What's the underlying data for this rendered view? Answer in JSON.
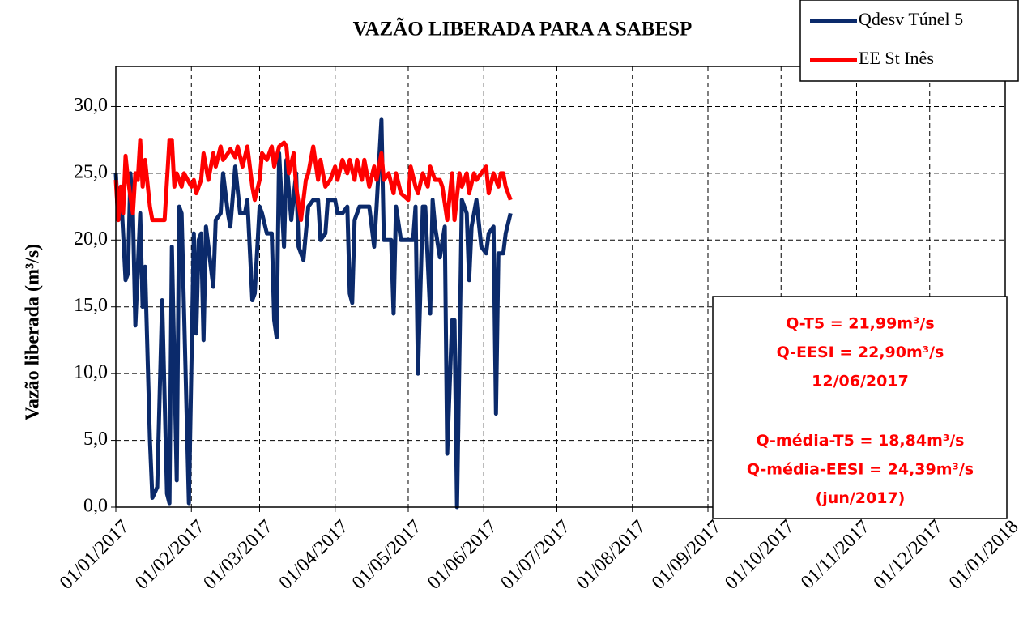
{
  "chart_data": {
    "type": "line",
    "title": "VAZÃO  LIBERADA PARA A SABESP",
    "y_label": "Vazão liberada  (m³/s)",
    "xlim": [
      "01/01/2017",
      "01/01/2018"
    ],
    "xticks": [
      "01/01/2017",
      "01/02/2017",
      "01/03/2017",
      "01/04/2017",
      "01/05/2017",
      "01/06/2017",
      "01/07/2017",
      "01/08/2017",
      "01/09/2017",
      "01/10/2017",
      "01/11/2017",
      "01/12/2017",
      "01/01/2018"
    ],
    "ylim": [
      0,
      33
    ],
    "yticks": [
      {
        "value": 0,
        "label": "0,0"
      },
      {
        "value": 5,
        "label": "5,0"
      },
      {
        "value": 10,
        "label": "10,0"
      },
      {
        "value": 15,
        "label": "15,0"
      },
      {
        "value": 20,
        "label": "20,0"
      },
      {
        "value": 25,
        "label": "25,0"
      },
      {
        "value": 30,
        "label": "30,0"
      }
    ],
    "grid": true,
    "legend": "top-right",
    "series": [
      {
        "name": "Qdesv Túnel 5",
        "color": "#0b2a6b",
        "x": [
          "01/01/2017",
          "02/01/2017",
          "03/01/2017",
          "05/01/2017",
          "06/01/2017",
          "07/01/2017",
          "08/01/2017",
          "09/01/2017",
          "11/01/2017",
          "12/01/2017",
          "13/01/2017",
          "15/01/2017",
          "16/01/2017",
          "18/01/2017",
          "20/01/2017",
          "22/01/2017",
          "23/01/2017",
          "24/01/2017",
          "26/01/2017",
          "27/01/2017",
          "28/01/2017",
          "31/01/2017",
          "02/02/2017",
          "03/02/2017",
          "04/02/2017",
          "05/02/2017",
          "06/02/2017",
          "07/02/2017",
          "09/02/2017",
          "10/02/2017",
          "11/02/2017",
          "13/02/2017",
          "14/02/2017",
          "16/02/2017",
          "17/02/2017",
          "19/02/2017",
          "21/02/2017",
          "23/02/2017",
          "24/02/2017",
          "26/02/2017",
          "27/02/2017",
          "01/03/2017",
          "02/03/2017",
          "04/03/2017",
          "06/03/2017",
          "07/03/2017",
          "08/03/2017",
          "09/03/2017",
          "11/03/2017",
          "12/03/2017",
          "14/03/2017",
          "16/03/2017",
          "17/03/2017",
          "19/03/2017",
          "21/03/2017",
          "23/03/2017",
          "25/03/2017",
          "26/03/2017",
          "28/03/2017",
          "29/03/2017",
          "01/04/2017",
          "02/04/2017",
          "04/04/2017",
          "06/04/2017",
          "07/04/2017",
          "08/04/2017",
          "09/04/2017",
          "11/04/2017",
          "13/04/2017",
          "15/04/2017",
          "17/04/2017",
          "18/04/2017",
          "20/04/2017",
          "21/04/2017",
          "24/04/2017",
          "25/04/2017",
          "26/04/2017",
          "28/04/2017",
          "01/05/2017",
          "03/05/2017",
          "04/05/2017",
          "05/05/2017",
          "07/05/2017",
          "08/05/2017",
          "10/05/2017",
          "11/05/2017",
          "12/05/2017",
          "14/05/2017",
          "16/05/2017",
          "17/05/2017",
          "19/05/2017",
          "20/05/2017",
          "21/05/2017",
          "23/05/2017",
          "25/05/2017",
          "26/05/2017",
          "27/05/2017",
          "29/05/2017",
          "31/05/2017",
          "02/06/2017",
          "03/06/2017",
          "05/06/2017",
          "06/06/2017",
          "07/06/2017",
          "09/06/2017",
          "10/06/2017",
          "12/06/2017"
        ],
        "values": [
          25,
          21.5,
          24,
          17,
          17.5,
          25,
          22,
          13.6,
          22,
          15,
          18,
          5,
          0.7,
          1.5,
          15.5,
          1,
          0.3,
          19.5,
          2,
          22.5,
          22,
          0.3,
          20.5,
          13,
          20,
          20.5,
          12.5,
          21,
          18,
          16.5,
          21.5,
          22,
          25,
          22,
          21,
          25.5,
          22,
          22,
          23,
          15.5,
          16,
          22.5,
          22,
          20.5,
          20.5,
          14,
          12.7,
          26.5,
          19.5,
          26,
          21.5,
          25,
          19.5,
          18.5,
          22.5,
          23,
          23,
          20,
          20.5,
          23,
          23,
          22,
          22,
          22.5,
          16,
          15.3,
          21.5,
          22.5,
          22.5,
          22.5,
          19.5,
          22.5,
          29,
          20,
          20,
          14.5,
          22.5,
          20,
          20,
          20,
          22.5,
          10,
          22.5,
          22.5,
          14.5,
          23,
          21,
          18.7,
          21,
          4,
          14,
          14,
          0,
          23,
          22,
          17,
          21,
          23,
          19.5,
          19,
          20.5,
          21,
          7,
          19,
          19,
          20.5,
          22
        ]
      },
      {
        "name": "EE St Inês",
        "color": "#ff0000",
        "x": [
          "01/01/2017",
          "02/01/2017",
          "03/01/2017",
          "04/01/2017",
          "05/01/2017",
          "06/01/2017",
          "08/01/2017",
          "09/01/2017",
          "10/01/2017",
          "11/01/2017",
          "12/01/2017",
          "13/01/2017",
          "15/01/2017",
          "16/01/2017",
          "21/01/2017",
          "23/01/2017",
          "24/01/2017",
          "25/01/2017",
          "26/01/2017",
          "28/01/2017",
          "29/01/2017",
          "01/02/2017",
          "02/02/2017",
          "03/02/2017",
          "05/02/2017",
          "06/02/2017",
          "08/02/2017",
          "10/02/2017",
          "11/02/2017",
          "13/02/2017",
          "14/02/2017",
          "16/02/2017",
          "17/02/2017",
          "19/02/2017",
          "20/02/2017",
          "22/02/2017",
          "24/02/2017",
          "26/02/2017",
          "27/02/2017",
          "01/03/2017",
          "02/03/2017",
          "04/03/2017",
          "06/03/2017",
          "07/03/2017",
          "09/03/2017",
          "11/03/2017",
          "12/03/2017",
          "13/03/2017",
          "15/03/2017",
          "16/03/2017",
          "18/03/2017",
          "20/03/2017",
          "21/03/2017",
          "23/03/2017",
          "25/03/2017",
          "26/03/2017",
          "28/03/2017",
          "30/03/2017",
          "01/04/2017",
          "02/04/2017",
          "04/04/2017",
          "06/04/2017",
          "07/04/2017",
          "09/04/2017",
          "10/04/2017",
          "12/04/2017",
          "13/04/2017",
          "15/04/2017",
          "17/04/2017",
          "18/04/2017",
          "20/04/2017",
          "21/04/2017",
          "23/04/2017",
          "25/04/2017",
          "26/04/2017",
          "28/04/2017",
          "01/05/2017",
          "02/05/2017",
          "04/05/2017",
          "05/05/2017",
          "07/05/2017",
          "09/05/2017",
          "10/05/2017",
          "12/05/2017",
          "14/05/2017",
          "15/05/2017",
          "17/05/2017",
          "19/05/2017",
          "20/05/2017",
          "22/05/2017",
          "23/05/2017",
          "25/05/2017",
          "26/05/2017",
          "28/05/2017",
          "29/05/2017",
          "02/06/2017",
          "03/06/2017",
          "05/06/2017",
          "07/06/2017",
          "08/06/2017",
          "09/06/2017",
          "10/06/2017",
          "12/06/2017"
        ],
        "values": [
          24.5,
          21.5,
          24,
          22,
          26.3,
          24.5,
          22,
          25,
          24.5,
          27.5,
          24,
          26,
          22.5,
          21.5,
          21.5,
          27.5,
          27.5,
          24,
          25,
          24,
          25,
          24,
          24.5,
          23.5,
          24.5,
          26.5,
          24.5,
          26.5,
          25.5,
          27,
          26,
          26.5,
          26.8,
          26.2,
          27,
          25.5,
          27,
          24,
          23,
          24.5,
          26.5,
          26,
          27,
          25.5,
          27,
          27.3,
          27,
          25,
          26.5,
          24,
          21.5,
          24.5,
          25,
          27,
          24.5,
          26,
          24,
          24.5,
          25.5,
          24.5,
          26,
          25,
          26,
          24.5,
          26,
          24.5,
          26,
          24,
          25.5,
          24.5,
          26.5,
          24.5,
          25,
          23.5,
          25,
          23.5,
          23,
          25.5,
          24,
          23.5,
          25,
          24,
          25.5,
          24.5,
          24.5,
          24,
          21.5,
          25,
          21.5,
          25,
          24,
          25,
          23.5,
          25,
          24.5,
          25.5,
          23.5,
          25,
          24,
          25,
          25,
          24,
          23
        ]
      }
    ],
    "annotation": [
      "Q-T5 = 21,99m³/s",
      "Q-EESI = 22,90m³/s",
      "12/06/2017",
      "Q-média-T5 = 18,84m³/s",
      "Q-média-EESI = 24,39m³/s",
      "(jun/2017)"
    ]
  }
}
